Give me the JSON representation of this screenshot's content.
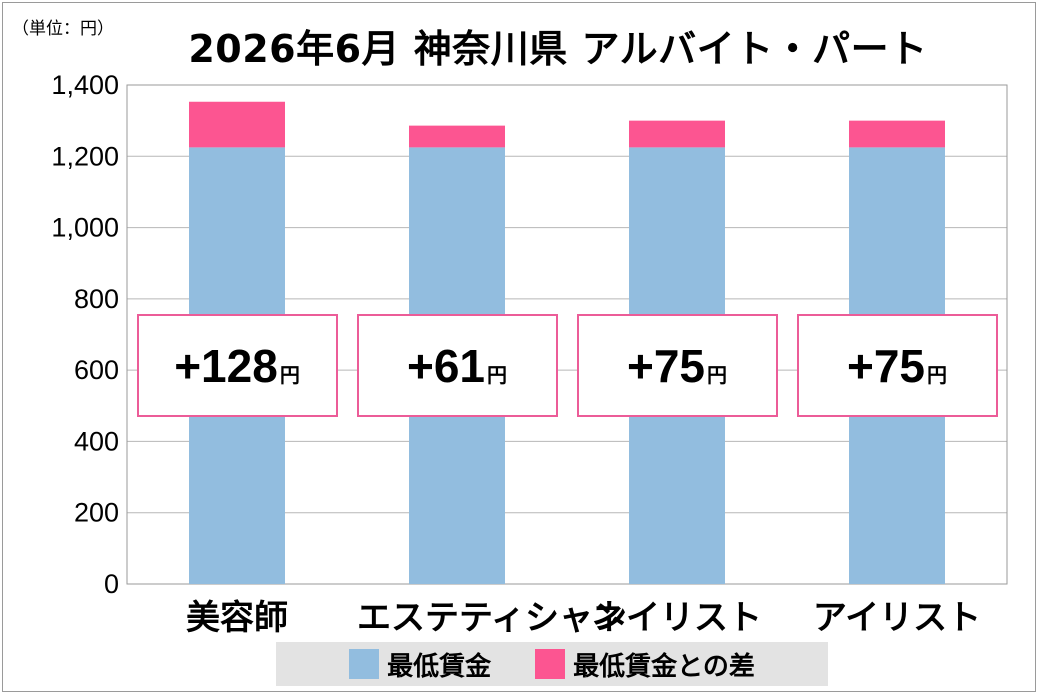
{
  "unit_label": "（単位：円）",
  "chart_data": {
    "type": "bar",
    "stacked": true,
    "title": "2026年6月 神奈川県 アルバイト・パート",
    "categories": [
      "美容師",
      "エステティシャン",
      "ネイリスト",
      "アイリスト"
    ],
    "series": [
      {
        "name": "最低賃金",
        "color": "#92bddf",
        "values": [
          1225,
          1225,
          1225,
          1225
        ]
      },
      {
        "name": "最低賃金との差",
        "color": "#fc5591",
        "values": [
          128,
          61,
          75,
          75
        ]
      }
    ],
    "annotations": [
      {
        "sign": "+",
        "value": "128",
        "unit": "円"
      },
      {
        "sign": "+",
        "value": "61",
        "unit": "円"
      },
      {
        "sign": "+",
        "value": "75",
        "unit": "円"
      },
      {
        "sign": "+",
        "value": "75",
        "unit": "円"
      }
    ],
    "ylim": [
      0,
      1400
    ],
    "yticks": [
      "0",
      "200",
      "400",
      "600",
      "800",
      "1,000",
      "1,200",
      "1,400"
    ],
    "grid": true,
    "legend_position": "bottom",
    "xlabel": "",
    "ylabel": ""
  }
}
